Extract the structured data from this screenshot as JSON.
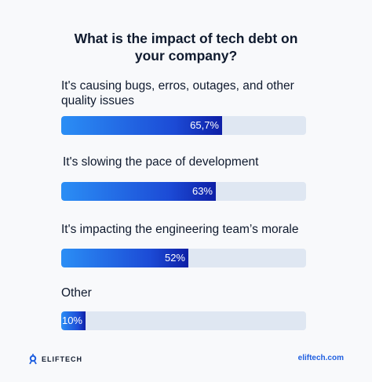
{
  "chart_data": {
    "type": "bar",
    "orientation": "horizontal",
    "title": "What is the impact of tech debt on your company?",
    "categories": [
      "It's causing bugs, erros, outages, and other quality issues",
      "It's slowing the pace of development",
      "It's impacting the engineering team’s morale",
      "Other"
    ],
    "values": [
      65.7,
      63,
      52,
      10
    ],
    "value_labels": [
      "65,7%",
      "63%",
      "52%",
      "10%"
    ],
    "xlim": [
      0,
      100
    ],
    "grid": false,
    "legend": "none"
  },
  "title_lines": [
    "What is the impact of tech debt on",
    "your company?"
  ],
  "colors": {
    "bar_start": "#2b8ef5",
    "bar_end": "#0e1fa6",
    "track": "#dfe7f2",
    "text": "#0f1a2e",
    "link": "#1f5fe0"
  },
  "footer": {
    "brand": "ELIFTECH",
    "brand_icon": "eliftech-logo-icon",
    "site": "eliftech.com"
  }
}
